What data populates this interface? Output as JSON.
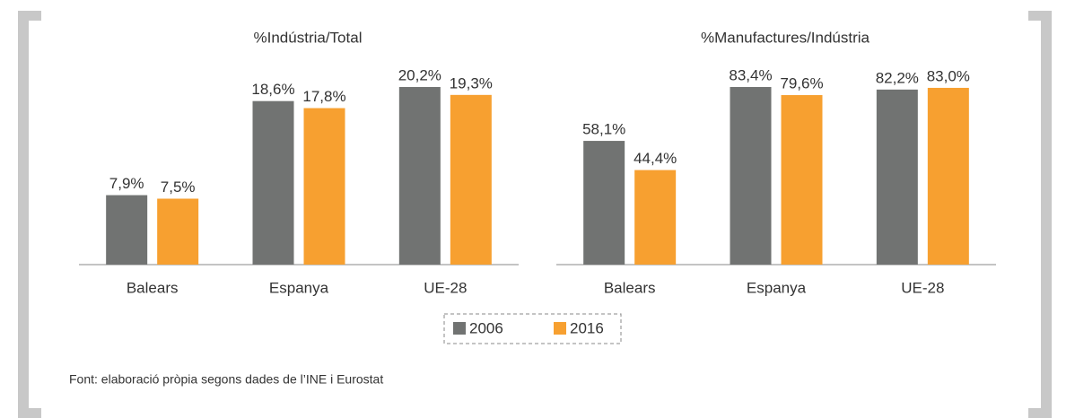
{
  "chart_data": [
    {
      "type": "bar",
      "title": "%Indústria/Total",
      "categories": [
        "Balears",
        "Espanya",
        "UE-28"
      ],
      "series": [
        {
          "name": "2006",
          "color": "#717372",
          "values": [
            7.9,
            18.6,
            20.2
          ],
          "value_labels": [
            "7,9%",
            "18,6%",
            "20,2%"
          ]
        },
        {
          "name": "2016",
          "color": "#f7a030",
          "values": [
            7.5,
            17.8,
            19.3
          ],
          "value_labels": [
            "7,5%",
            "17,8%",
            "19,3%"
          ]
        }
      ]
    },
    {
      "type": "bar",
      "title": "%Manufactures/Indústria",
      "categories": [
        "Balears",
        "Espanya",
        "UE-28"
      ],
      "series": [
        {
          "name": "2006",
          "color": "#717372",
          "values": [
            58.1,
            83.4,
            82.2
          ],
          "value_labels": [
            "58,1%",
            "83,4%",
            "82,2%"
          ]
        },
        {
          "name": "2016",
          "color": "#f7a030",
          "values": [
            44.4,
            79.6,
            83.0
          ],
          "value_labels": [
            "44,4%",
            "79,6%",
            "83,0%"
          ]
        }
      ]
    }
  ],
  "source": "Font: elaboració pròpia segons dades de l’INE i Eurostat"
}
